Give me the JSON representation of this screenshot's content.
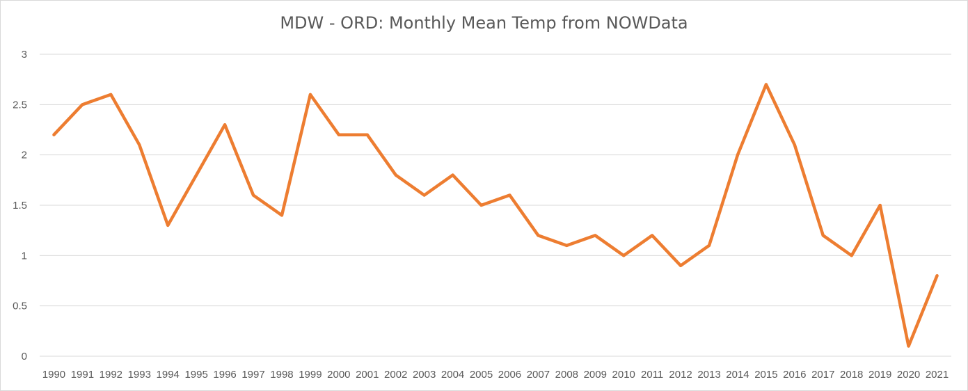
{
  "chart_data": {
    "type": "line",
    "title": "MDW - ORD: Monthly Mean Temp from NOWData",
    "xlabel": "",
    "ylabel": "",
    "categories": [
      "1990",
      "1991",
      "1992",
      "1993",
      "1994",
      "1995",
      "1996",
      "1997",
      "1998",
      "1999",
      "2000",
      "2001",
      "2002",
      "2003",
      "2004",
      "2005",
      "2006",
      "2007",
      "2008",
      "2009",
      "2010",
      "2011",
      "2012",
      "2013",
      "2014",
      "2015",
      "2016",
      "2017",
      "2018",
      "2019",
      "2020",
      "2021"
    ],
    "series": [
      {
        "values": [
          2.2,
          2.5,
          2.6,
          2.1,
          1.3,
          1.8,
          2.3,
          1.6,
          1.4,
          2.6,
          2.2,
          2.2,
          1.8,
          1.6,
          1.8,
          1.5,
          1.6,
          1.2,
          1.1,
          1.2,
          1.0,
          1.2,
          0.9,
          1.1,
          2.0,
          2.7,
          2.1,
          1.2,
          1.0,
          1.5,
          0.1,
          0.8
        ],
        "color": "#ed7d31"
      }
    ],
    "ylim": [
      0,
      3
    ],
    "yticks": [
      "0",
      "0.5",
      "1",
      "1.5",
      "2",
      "2.5",
      "3"
    ],
    "grid": true,
    "legend": "none",
    "colors": {
      "line": "#ed7d31",
      "grid": "#d9d9d9",
      "text": "#595959"
    }
  }
}
